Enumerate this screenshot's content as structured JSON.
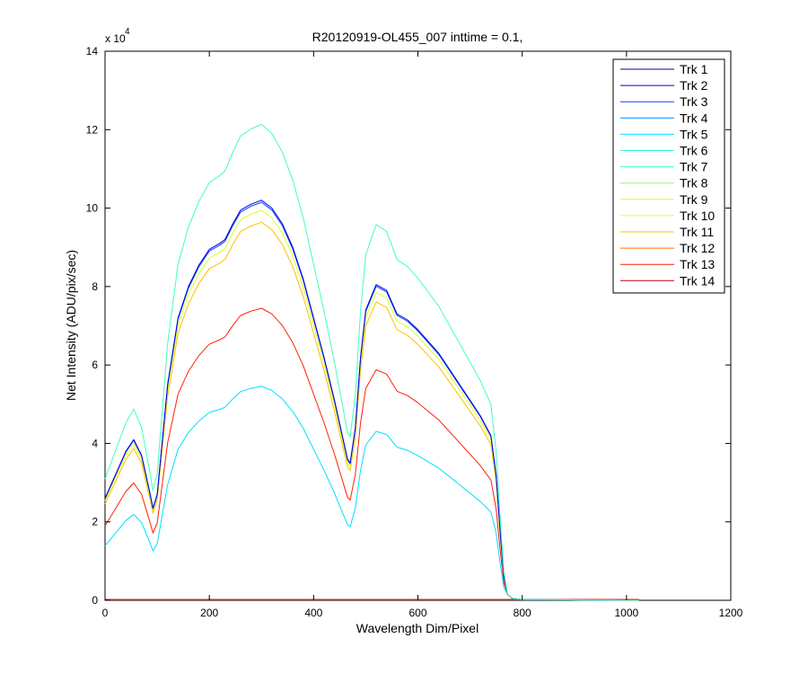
{
  "chart_data": {
    "type": "line",
    "title": "R20120919-OL455_007 inttime = 0.1,",
    "xlabel": "Wavelength Dim/Pixel",
    "ylabel": "Net Intensity (ADU/pix/sec)",
    "xlim": [
      0,
      1200
    ],
    "ylim": [
      0,
      14
    ],
    "y_multiplier_label": "x 10",
    "y_multiplier_exponent": "4",
    "xticks": [
      "0",
      "200",
      "400",
      "600",
      "800",
      "1000",
      "1200"
    ],
    "yticks": [
      "0",
      "2",
      "4",
      "6",
      "8",
      "10",
      "12",
      "14"
    ],
    "legend_position": "top-right",
    "grid": false,
    "series": [
      {
        "name": "Trk 1",
        "color": "#00008F",
        "scale": 0.0
      },
      {
        "name": "Trk 2",
        "color": "#0000DF",
        "scale": 1.0
      },
      {
        "name": "Trk 3",
        "color": "#0040FF",
        "scale": 0.995
      },
      {
        "name": "Trk 4",
        "color": "#008FFF",
        "scale": 0.0
      },
      {
        "name": "Trk 5",
        "color": "#00DFFF",
        "scale": 0.535
      },
      {
        "name": "Trk 6",
        "color": "#30FFCF",
        "scale": 0.0
      },
      {
        "name": "Trk 7",
        "color": "#40FFBF",
        "scale": 1.19
      },
      {
        "name": "Trk 8",
        "color": "#8FFF70",
        "scale": 0.0
      },
      {
        "name": "Trk 9",
        "color": "#CFFF30",
        "scale": 0.0
      },
      {
        "name": "Trk 10",
        "color": "#DFFF20",
        "scale": 0.975
      },
      {
        "name": "Trk 11",
        "color": "#FFBF00",
        "scale": 0.945
      },
      {
        "name": "Trk 12",
        "color": "#FF7000",
        "scale": 0.0
      },
      {
        "name": "Trk 13",
        "color": "#FF2000",
        "scale": 0.73
      },
      {
        "name": "Trk 14",
        "color": "#CF0000",
        "scale": 0.0
      }
    ],
    "base_profile": {
      "x": [
        0,
        20,
        40,
        55,
        70,
        85,
        92,
        100,
        110,
        120,
        140,
        160,
        180,
        200,
        220,
        230,
        245,
        260,
        280,
        300,
        320,
        340,
        360,
        380,
        400,
        420,
        440,
        455,
        465,
        470,
        480,
        490,
        500,
        520,
        540,
        560,
        580,
        600,
        620,
        640,
        660,
        680,
        700,
        720,
        740,
        750,
        758,
        765,
        772,
        780,
        800,
        1000,
        1024
      ],
      "y": [
        2.6,
        3.2,
        3.8,
        4.1,
        3.7,
        2.8,
        2.35,
        2.7,
        4.1,
        5.5,
        7.2,
        8.0,
        8.55,
        8.95,
        9.1,
        9.2,
        9.6,
        9.95,
        10.1,
        10.2,
        10.0,
        9.6,
        9.0,
        8.2,
        7.2,
        6.2,
        5.1,
        4.2,
        3.6,
        3.5,
        4.4,
        6.2,
        7.4,
        8.05,
        7.9,
        7.3,
        7.15,
        6.9,
        6.6,
        6.3,
        5.9,
        5.5,
        5.1,
        4.7,
        4.2,
        3.2,
        1.7,
        0.6,
        0.15,
        0.05,
        0.02,
        0.0,
        0.0
      ]
    }
  }
}
